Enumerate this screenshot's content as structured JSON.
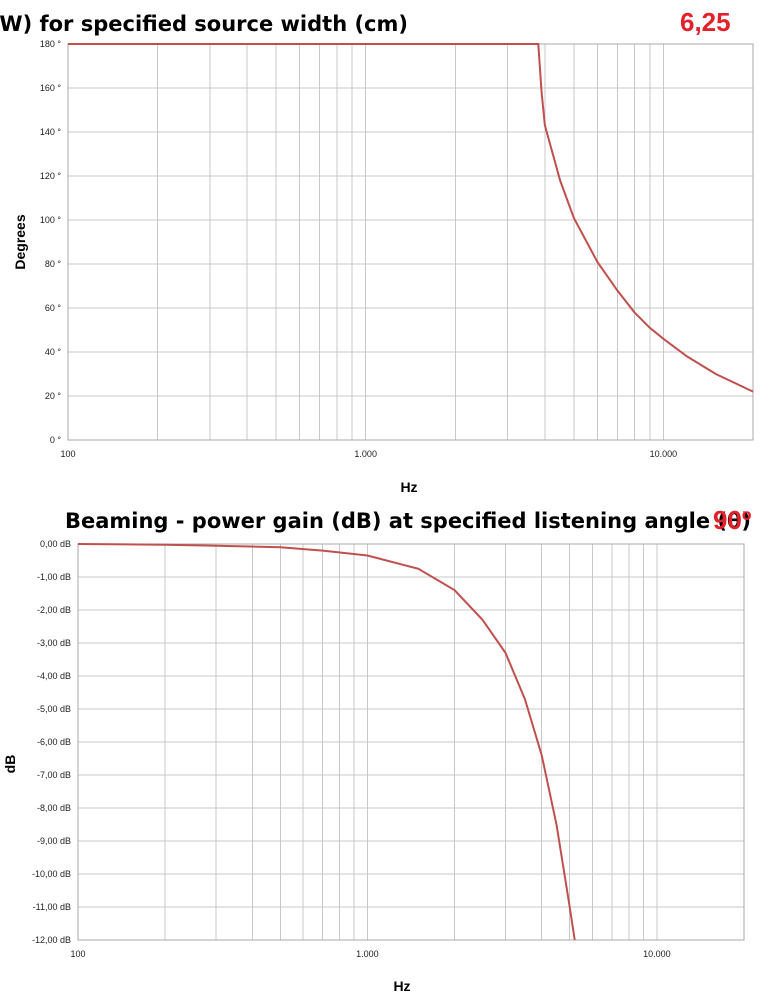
{
  "chart_data": [
    {
      "type": "line",
      "title": "Beam Width (BW) for specified source width (cm)",
      "title_value": "6,25",
      "xlabel": "Hz",
      "ylabel": "Degrees",
      "x_scale": "log",
      "xlim": [
        100,
        20000
      ],
      "ylim": [
        0,
        180
      ],
      "x_ticks": [
        100,
        1000,
        10000
      ],
      "x_tick_labels": [
        "100",
        "1.000",
        "10.000"
      ],
      "y_ticks": [
        0,
        20,
        40,
        60,
        80,
        100,
        120,
        140,
        160,
        180
      ],
      "y_tick_labels": [
        "0 °",
        "20 °",
        "40 °",
        "60 °",
        "80 °",
        "100 °",
        "120 °",
        "140 °",
        "160 °",
        "180 °"
      ],
      "grid": true,
      "legend": "none",
      "series": [
        {
          "x": [
            100,
            500,
            1000,
            2000,
            3000,
            3700,
            3800,
            3900,
            4000,
            4500,
            5000,
            6000,
            7000,
            8000,
            9000,
            10000,
            12000,
            15000,
            20000
          ],
          "y": [
            180,
            180,
            180,
            180,
            180,
            180,
            180,
            158,
            143,
            118,
            101,
            81,
            68,
            58,
            51,
            46,
            38,
            30,
            22
          ]
        }
      ]
    },
    {
      "type": "line",
      "title": "Beaming - power gain (dB) at specified listening angle (θ)",
      "title_value": "90º",
      "xlabel": "Hz",
      "ylabel": "dB",
      "x_scale": "log",
      "xlim": [
        100,
        20000
      ],
      "ylim": [
        -12,
        0
      ],
      "x_ticks": [
        100,
        1000,
        10000
      ],
      "x_tick_labels": [
        "100",
        "1.000",
        "10.000"
      ],
      "y_ticks": [
        0,
        -1,
        -2,
        -3,
        -4,
        -5,
        -6,
        -7,
        -8,
        -9,
        -10,
        -11,
        -12
      ],
      "y_tick_labels": [
        "0,00 dB",
        "-1,00 dB",
        "-2,00 dB",
        "-3,00 dB",
        "-4,00 dB",
        "-5,00 dB",
        "-6,00 dB",
        "-7,00 dB",
        "-8,00 dB",
        "-9,00 dB",
        "-10,00 dB",
        "-11,00 dB",
        "-12,00 dB"
      ],
      "grid": true,
      "legend": "none",
      "series": [
        {
          "x": [
            100,
            200,
            300,
            500,
            700,
            1000,
            1500,
            2000,
            2500,
            3000,
            3500,
            4000,
            4500,
            5000,
            5200
          ],
          "y": [
            0,
            -0.02,
            -0.05,
            -0.1,
            -0.2,
            -0.35,
            -0.75,
            -1.4,
            -2.3,
            -3.3,
            -4.7,
            -6.4,
            -8.5,
            -11.0,
            -12.0
          ]
        }
      ]
    }
  ],
  "colors": {
    "line": "#c0504d",
    "title_value": "#e3212b",
    "grid": "#c8c8c8"
  }
}
